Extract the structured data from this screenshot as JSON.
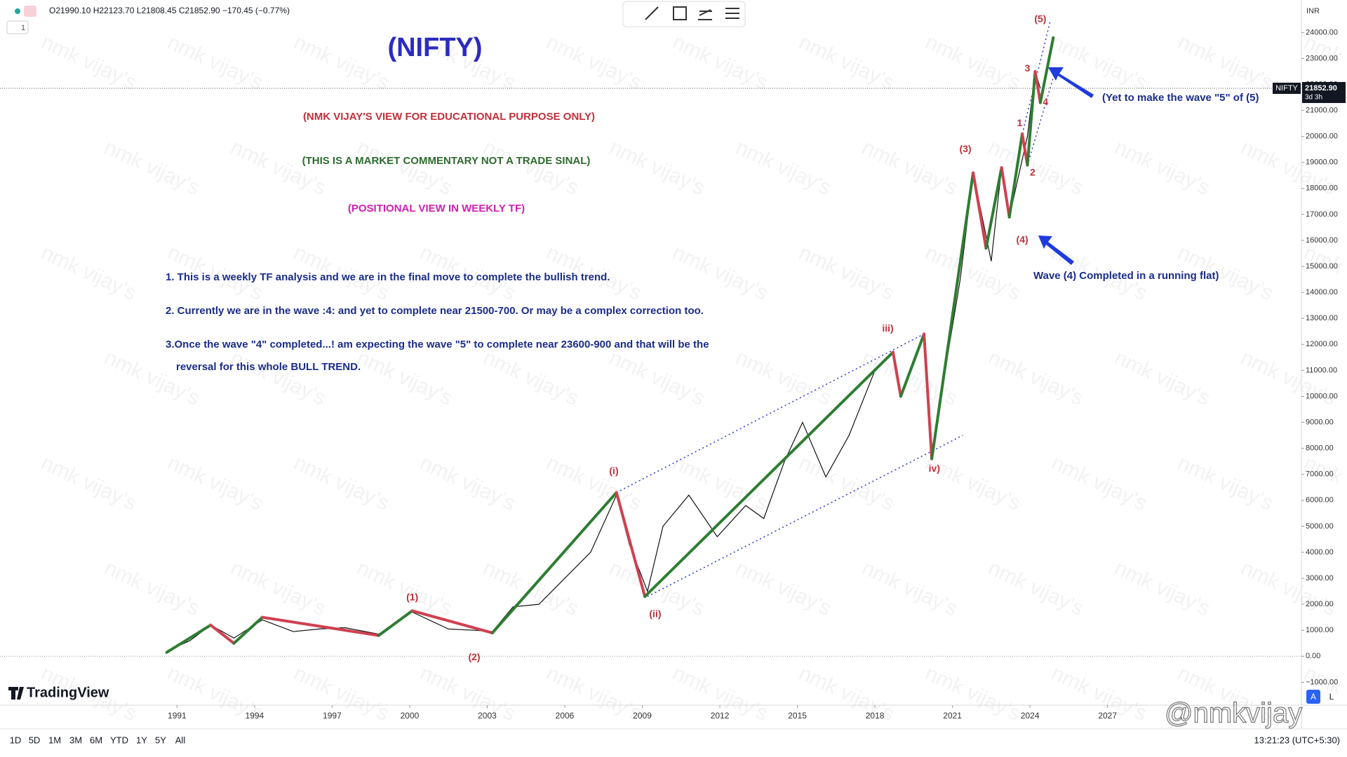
{
  "header": {
    "ohlc": "O21990.10 H22123.70 L21808.45 C21852.90 −170.45 (−0.77%)",
    "interval": "1"
  },
  "chart_data": {
    "type": "line",
    "title": "(NIFTY)",
    "x": [
      1990.6,
      1991.5,
      1992.3,
      1993.2,
      1994.3,
      1995.5,
      1996.5,
      1997.5,
      1998.8,
      2000.1,
      2001.5,
      2002.5,
      2003.2,
      2004.0,
      2005.0,
      2006.0,
      2007.0,
      2008.0,
      2008.5,
      2009.2,
      2009.8,
      2010.8,
      2011.9,
      2013.0,
      2013.7,
      2014.5,
      2015.2,
      2016.1,
      2017.0,
      2018.0,
      2018.7,
      2019.0,
      2019.9,
      2020.2,
      2020.8,
      2021.3,
      2021.8,
      2022.5,
      2022.9,
      2023.2,
      2023.9,
      2024.2,
      2024.4
    ],
    "series": [
      {
        "name": "NIFTY",
        "color": "#111111",
        "values": [
          200,
          600,
          1200,
          700,
          1400,
          950,
          1050,
          1100,
          850,
          1700,
          1050,
          1000,
          950,
          1900,
          2000,
          3000,
          4000,
          6200,
          4300,
          2500,
          5000,
          6200,
          4600,
          5800,
          5300,
          7500,
          9000,
          6900,
          8500,
          11000,
          11700,
          10000,
          12300,
          7600,
          11500,
          14500,
          18600,
          15200,
          18800,
          16900,
          20000,
          22500,
          21850
        ]
      }
    ],
    "xlim": [
      1984.15,
      2034.5
    ],
    "xticks": [
      1991,
      1994,
      1997,
      2000,
      2003,
      2006,
      2009,
      2012,
      2015,
      2018,
      2021,
      2024,
      2027
    ],
    "ylim": [
      -1880,
      25250
    ],
    "yticks": [
      {
        "value": -1000,
        "label": "−1000.00"
      },
      {
        "value": 0,
        "label": "0.00"
      },
      {
        "value": 1000,
        "label": "1000.00"
      },
      {
        "value": 2000,
        "label": "2000.00"
      },
      {
        "value": 3000,
        "label": "3000.00"
      },
      {
        "value": 4000,
        "label": "4000.00"
      },
      {
        "value": 5000,
        "label": "5000.00"
      },
      {
        "value": 6000,
        "label": "6000.00"
      },
      {
        "value": 7000,
        "label": "7000.00"
      },
      {
        "value": 8000,
        "label": "8000.00"
      },
      {
        "value": 9000,
        "label": "9000.00"
      },
      {
        "value": 10000,
        "label": "10000.00"
      },
      {
        "value": 11000,
        "label": "11000.00"
      },
      {
        "value": 12000,
        "label": "12000.00"
      },
      {
        "value": 13000,
        "label": "13000.00"
      },
      {
        "value": 14000,
        "label": "14000.00"
      },
      {
        "value": 15000,
        "label": "15000.00"
      },
      {
        "value": 16000,
        "label": "16000.00"
      },
      {
        "value": 17000,
        "label": "17000.00"
      },
      {
        "value": 18000,
        "label": "18000.00"
      },
      {
        "value": 19000,
        "label": "19000.00"
      },
      {
        "value": 20000,
        "label": "20000.00"
      },
      {
        "value": 21000,
        "label": "21000.00"
      },
      {
        "value": 22000,
        "label": "22000.00"
      },
      {
        "value": 23000,
        "label": "23000.00"
      },
      {
        "value": 24000,
        "label": "24000.00"
      }
    ],
    "currency": "INR",
    "symbol": "NIFTY",
    "last_price": {
      "value": 21852.9,
      "label": "21852.90"
    },
    "countdown": "3d 3h",
    "wave_lines": [
      {
        "color": "#2e7d32",
        "x": [
          1990.6,
          1992.3
        ],
        "values": [
          150,
          1200
        ]
      },
      {
        "color": "#d04050",
        "x": [
          1992.3,
          1993.2
        ],
        "values": [
          1200,
          500
        ]
      },
      {
        "color": "#2e7d32",
        "x": [
          1993.2,
          1994.3
        ],
        "values": [
          500,
          1500
        ]
      },
      {
        "color": "#d04050",
        "x": [
          1994.3,
          1998.8
        ],
        "values": [
          1500,
          800
        ]
      },
      {
        "color": "#2e7d32",
        "x": [
          1998.8,
          2000.1
        ],
        "values": [
          800,
          1750
        ]
      },
      {
        "color": "#d04050",
        "x": [
          2000.1,
          2003.2
        ],
        "values": [
          1750,
          900
        ]
      },
      {
        "color": "#2e7d32",
        "x": [
          2003.2,
          2008.0
        ],
        "values": [
          900,
          6300
        ]
      },
      {
        "color": "#d04050",
        "x": [
          2008.0,
          2009.1
        ],
        "values": [
          6300,
          2300
        ]
      },
      {
        "color": "#2e7d32",
        "x": [
          2009.1,
          2018.7
        ],
        "values": [
          2300,
          11700
        ]
      },
      {
        "color": "#d04050",
        "x": [
          2018.7,
          2019.0
        ],
        "values": [
          11700,
          10000
        ]
      },
      {
        "color": "#2e7d32",
        "x": [
          2019.0,
          2019.9
        ],
        "values": [
          10000,
          12400
        ]
      },
      {
        "color": "#d04050",
        "x": [
          2019.9,
          2020.2
        ],
        "values": [
          12400,
          7600
        ]
      },
      {
        "color": "#2e7d32",
        "x": [
          2020.2,
          2021.8
        ],
        "values": [
          7600,
          18600
        ]
      },
      {
        "color": "#d04050",
        "x": [
          2021.8,
          2022.3
        ],
        "values": [
          18600,
          15700
        ]
      },
      {
        "color": "#2e7d32",
        "x": [
          2022.3,
          2022.9
        ],
        "values": [
          15700,
          18800
        ]
      },
      {
        "color": "#d04050",
        "x": [
          2022.9,
          2023.2
        ],
        "values": [
          18800,
          16900
        ]
      },
      {
        "color": "#2e7d32",
        "x": [
          2023.2,
          2023.7
        ],
        "values": [
          16900,
          20100
        ]
      },
      {
        "color": "#d04050",
        "x": [
          2023.7,
          2023.9
        ],
        "values": [
          20100,
          18900
        ]
      },
      {
        "color": "#2e7d32",
        "x": [
          2023.9,
          2024.2
        ],
        "values": [
          18900,
          22500
        ]
      },
      {
        "color": "#d04050",
        "x": [
          2024.2,
          2024.4
        ],
        "values": [
          22500,
          21300
        ]
      },
      {
        "color": "#2e7d32",
        "x": [
          2024.4,
          2024.9
        ],
        "values": [
          21300,
          23800
        ]
      }
    ],
    "channels": [
      {
        "color": "#2a35c8",
        "x": [
          2008.0,
          2019.9
        ],
        "values": [
          6300,
          12400
        ]
      },
      {
        "color": "#2a35c8",
        "x": [
          2009.2,
          2021.4
        ],
        "values": [
          2300,
          8500
        ]
      },
      {
        "color": "#2a35c8",
        "x": [
          2023.7,
          2024.8
        ],
        "values": [
          20100,
          24500
        ]
      },
      {
        "color": "#2a35c8",
        "x": [
          2023.9,
          2025.0
        ],
        "values": [
          18900,
          22600
        ]
      }
    ],
    "wave_labels": [
      {
        "text": "(1)",
        "x": 2000.1,
        "y": 2250
      },
      {
        "text": "(2)",
        "x": 2002.5,
        "y": -50
      },
      {
        "text": "(i)",
        "x": 2007.9,
        "y": 7100
      },
      {
        "text": "(ii)",
        "x": 2009.5,
        "y": 1600
      },
      {
        "text": "iii)",
        "x": 2018.5,
        "y": 12600
      },
      {
        "text": "iv)",
        "x": 2020.3,
        "y": 7200
      },
      {
        "text": "(3)",
        "x": 2021.5,
        "y": 19500
      },
      {
        "text": "(4)",
        "x": 2023.7,
        "y": 16000
      },
      {
        "text": "(5)",
        "x": 2024.4,
        "y": 24500
      },
      {
        "text": "1",
        "x": 2023.6,
        "y": 20500
      },
      {
        "text": "2",
        "x": 2024.1,
        "y": 18600
      },
      {
        "text": "3",
        "x": 2023.9,
        "y": 22600
      },
      {
        "text": "4",
        "x": 2024.6,
        "y": 21300
      }
    ]
  },
  "annotations": {
    "disclaimer": "(NMK VIJAY'S VIEW FOR EDUCATIONAL PURPOSE ONLY)",
    "commentary": "(THIS IS A MARKET COMMENTARY NOT A TRADE SINAL)",
    "positional": "(POSITIONAL VIEW IN WEEKLY TF)",
    "points": [
      "1. This is a weekly TF analysis and we are in the final move to complete the bullish trend.",
      "2. Currently we are in the wave :4: and yet to complete near 21500-700. Or may be a complex correction too.",
      "3.Once the wave \"4\" completed...! am expecting the wave \"5\" to complete near 23600-900 and that will be the",
      "reversal for this whole BULL TREND."
    ],
    "wave5_note": "(Yet to make the wave \"5\" of (5)",
    "wave4_note": "Wave (4) Completed in a running flat)"
  },
  "watermark": "nmk vijay's",
  "footer_watermark": "@nmkvijay",
  "logo": "TradingView",
  "bottom_bar": {
    "ranges": [
      "1D",
      "5D",
      "1M",
      "3M",
      "6M",
      "YTD",
      "1Y",
      "5Y",
      "All"
    ],
    "time": "13:21:23 (UTC+5:30)",
    "scale_buttons": [
      "A",
      "L"
    ]
  }
}
